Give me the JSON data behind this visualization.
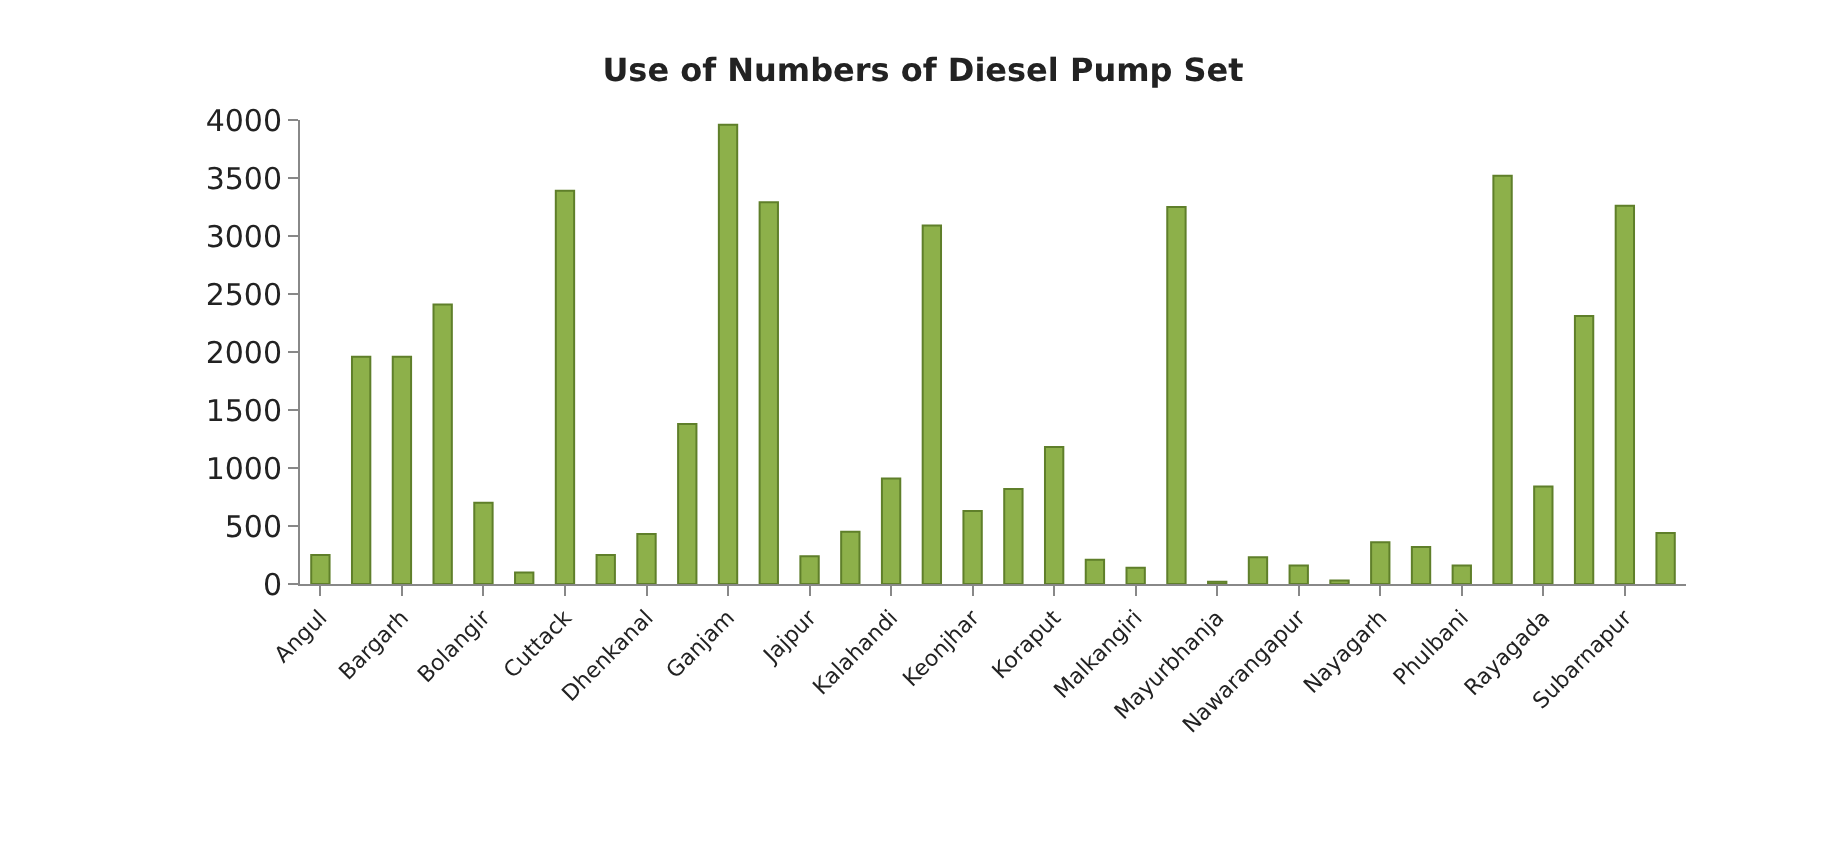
{
  "chart_data": {
    "type": "bar",
    "title": "Use of Numbers of Diesel Pump Set",
    "categories": [
      "Angul",
      null,
      "Bargarh",
      null,
      "Bolangir",
      null,
      "Cuttack",
      null,
      "Dhenkanal",
      null,
      "Ganjam",
      null,
      "Jajpur",
      null,
      "Kalahandi",
      null,
      "Keonjhar",
      null,
      "Koraput",
      null,
      "Malkangiri",
      null,
      "Mayurbhanja",
      null,
      "Nawarangapur",
      null,
      "Nayagarh",
      null,
      "Phulbani",
      null,
      "Rayagada",
      null,
      "Subarnapur",
      null
    ],
    "values": [
      250,
      1960,
      1960,
      2410,
      700,
      100,
      3390,
      250,
      430,
      1380,
      3960,
      3290,
      240,
      450,
      910,
      3090,
      630,
      820,
      1180,
      210,
      140,
      3250,
      20,
      230,
      160,
      30,
      360,
      320,
      160,
      3520,
      840,
      2310,
      3260,
      440
    ],
    "color": "#8db04a",
    "ylim": [
      0,
      4000
    ],
    "yticks": [
      0,
      500,
      1000,
      1500,
      2000,
      2500,
      3000,
      3500,
      4000
    ]
  }
}
